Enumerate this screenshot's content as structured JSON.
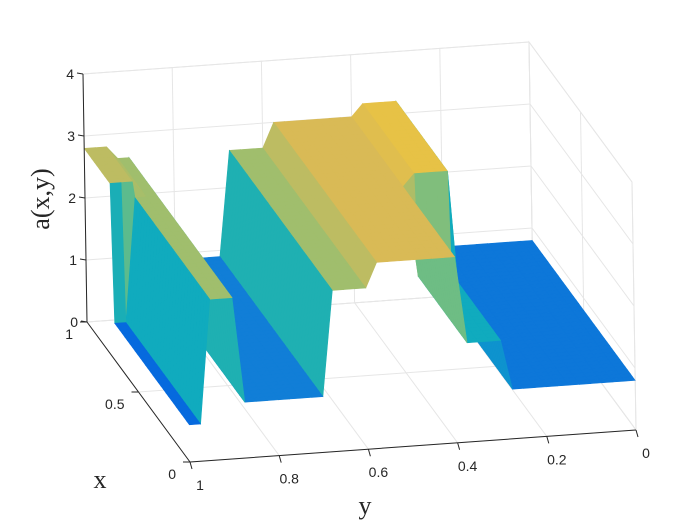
{
  "chart_data": {
    "type": "surface3d",
    "title": "",
    "xlabel": "x",
    "ylabel": "y",
    "zlabel": "a(x,y)",
    "xlim": [
      0,
      1
    ],
    "ylim": [
      0,
      1
    ],
    "zlim": [
      0,
      4
    ],
    "x_ticks": [
      "0",
      "0.5",
      "1"
    ],
    "y_ticks": [
      "0",
      "0.2",
      "0.4",
      "0.6",
      "0.8",
      "1"
    ],
    "z_ticks": [
      "0",
      "1",
      "2",
      "3",
      "4"
    ],
    "grid": true,
    "colormap": "parula",
    "y_axis_direction": "reversed",
    "surface_regions": [
      {
        "x_range": [
          0.75,
          1.0
        ],
        "y_range": [
          0.95,
          1.0
        ],
        "z": 2.8
      },
      {
        "x_range": [
          0.0,
          1.0
        ],
        "y_range": [
          0.9,
          0.95
        ],
        "z": 2.6
      },
      {
        "x_range": [
          0.0,
          1.0
        ],
        "y_range": [
          0.7,
          0.9
        ],
        "z": 0.9
      },
      {
        "x_range": [
          0.0,
          1.0
        ],
        "y_range": [
          0.6,
          0.7
        ],
        "z": 2.6
      },
      {
        "x_range": [
          0.0,
          1.0
        ],
        "y_range": [
          0.4,
          0.6
        ],
        "z": 3.0
      },
      {
        "x_range": [
          0.5,
          1.0
        ],
        "y_range": [
          0.3,
          0.4
        ],
        "z": 3.2
      },
      {
        "x_range": [
          0.0,
          1.0
        ],
        "y_range": [
          0.3,
          0.4
        ],
        "z": 1.6
      },
      {
        "x_range": [
          0.0,
          1.0
        ],
        "y_range": [
          0.0,
          0.3
        ],
        "z": 0.8
      }
    ]
  },
  "colors": {
    "parula": [
      "#352a87",
      "#0363e1",
      "#1485d4",
      "#06a7c6",
      "#38b99e",
      "#92bf73",
      "#d9ba56",
      "#fcce2e",
      "#f9fb0e"
    ],
    "axis": "#262626",
    "grid": "#e6e6e6"
  }
}
